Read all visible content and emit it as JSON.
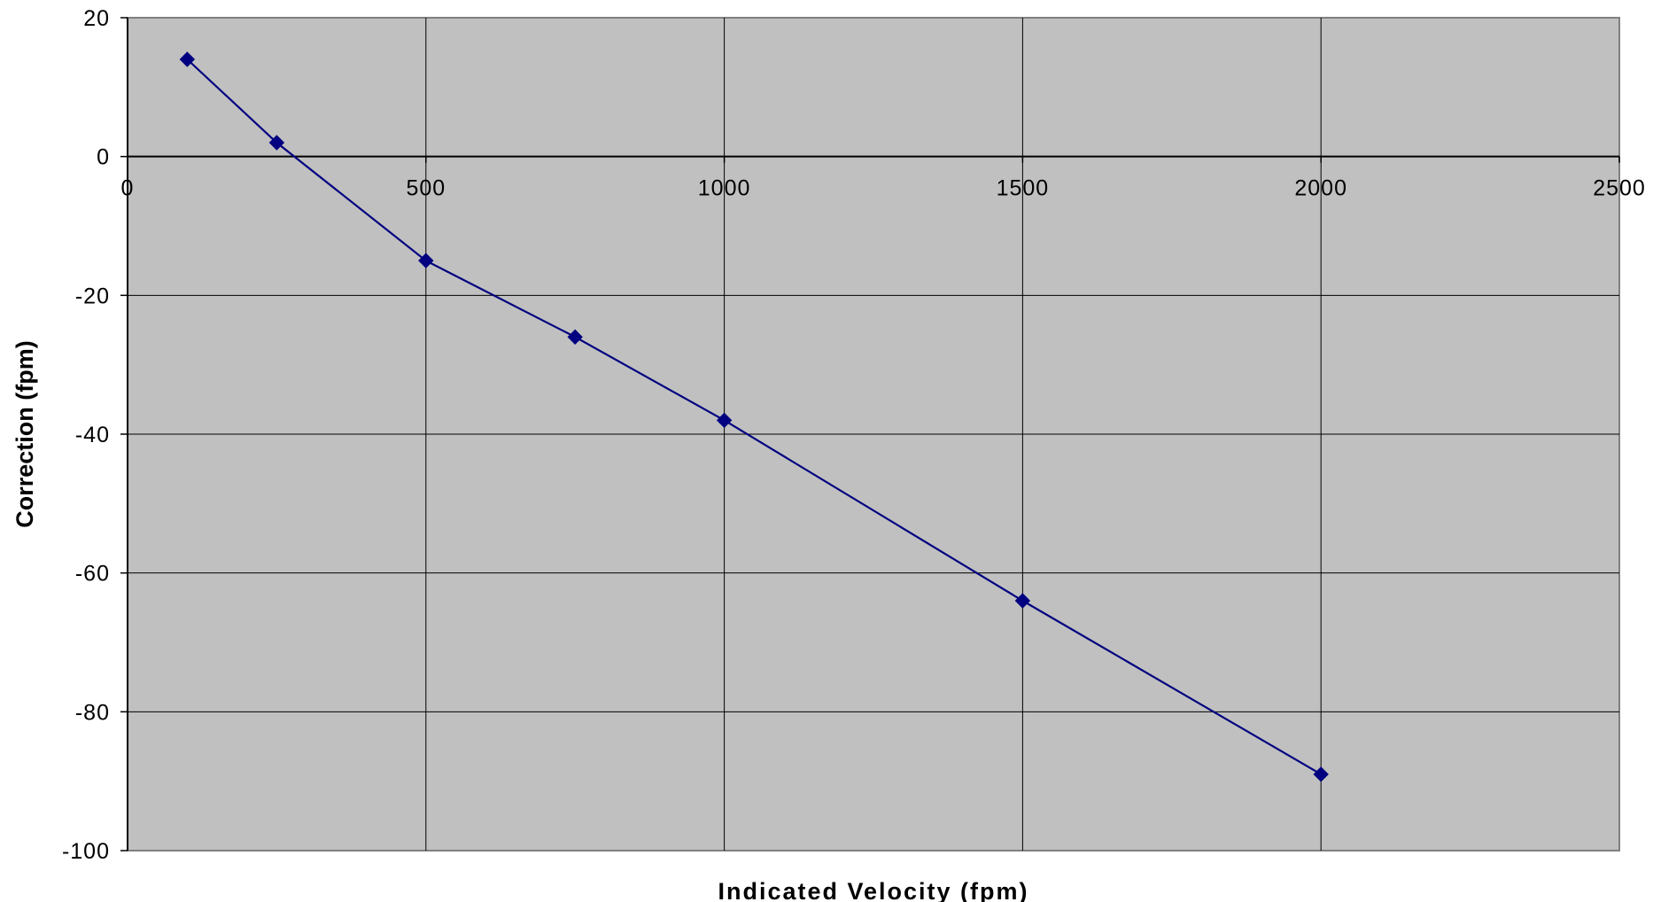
{
  "chart_data": {
    "type": "line",
    "title": "",
    "xlabel": "Indicated Velocity (fpm)",
    "ylabel": "Correction (fpm)",
    "xlim": [
      0,
      2500
    ],
    "ylim": [
      -100,
      20
    ],
    "xticks": [
      0,
      500,
      1000,
      1500,
      2000,
      2500
    ],
    "yticks": [
      20,
      0,
      -20,
      -40,
      -60,
      -80,
      -100
    ],
    "grid": true,
    "legend": "none",
    "plot_background": "#C0C0C0",
    "series": [
      {
        "color": "#000080",
        "marker": "diamond",
        "x": [
          100,
          250,
          500,
          750,
          1000,
          1500,
          2000
        ],
        "y": [
          14,
          2,
          -15,
          -26,
          -38,
          -64,
          -89
        ]
      }
    ]
  }
}
